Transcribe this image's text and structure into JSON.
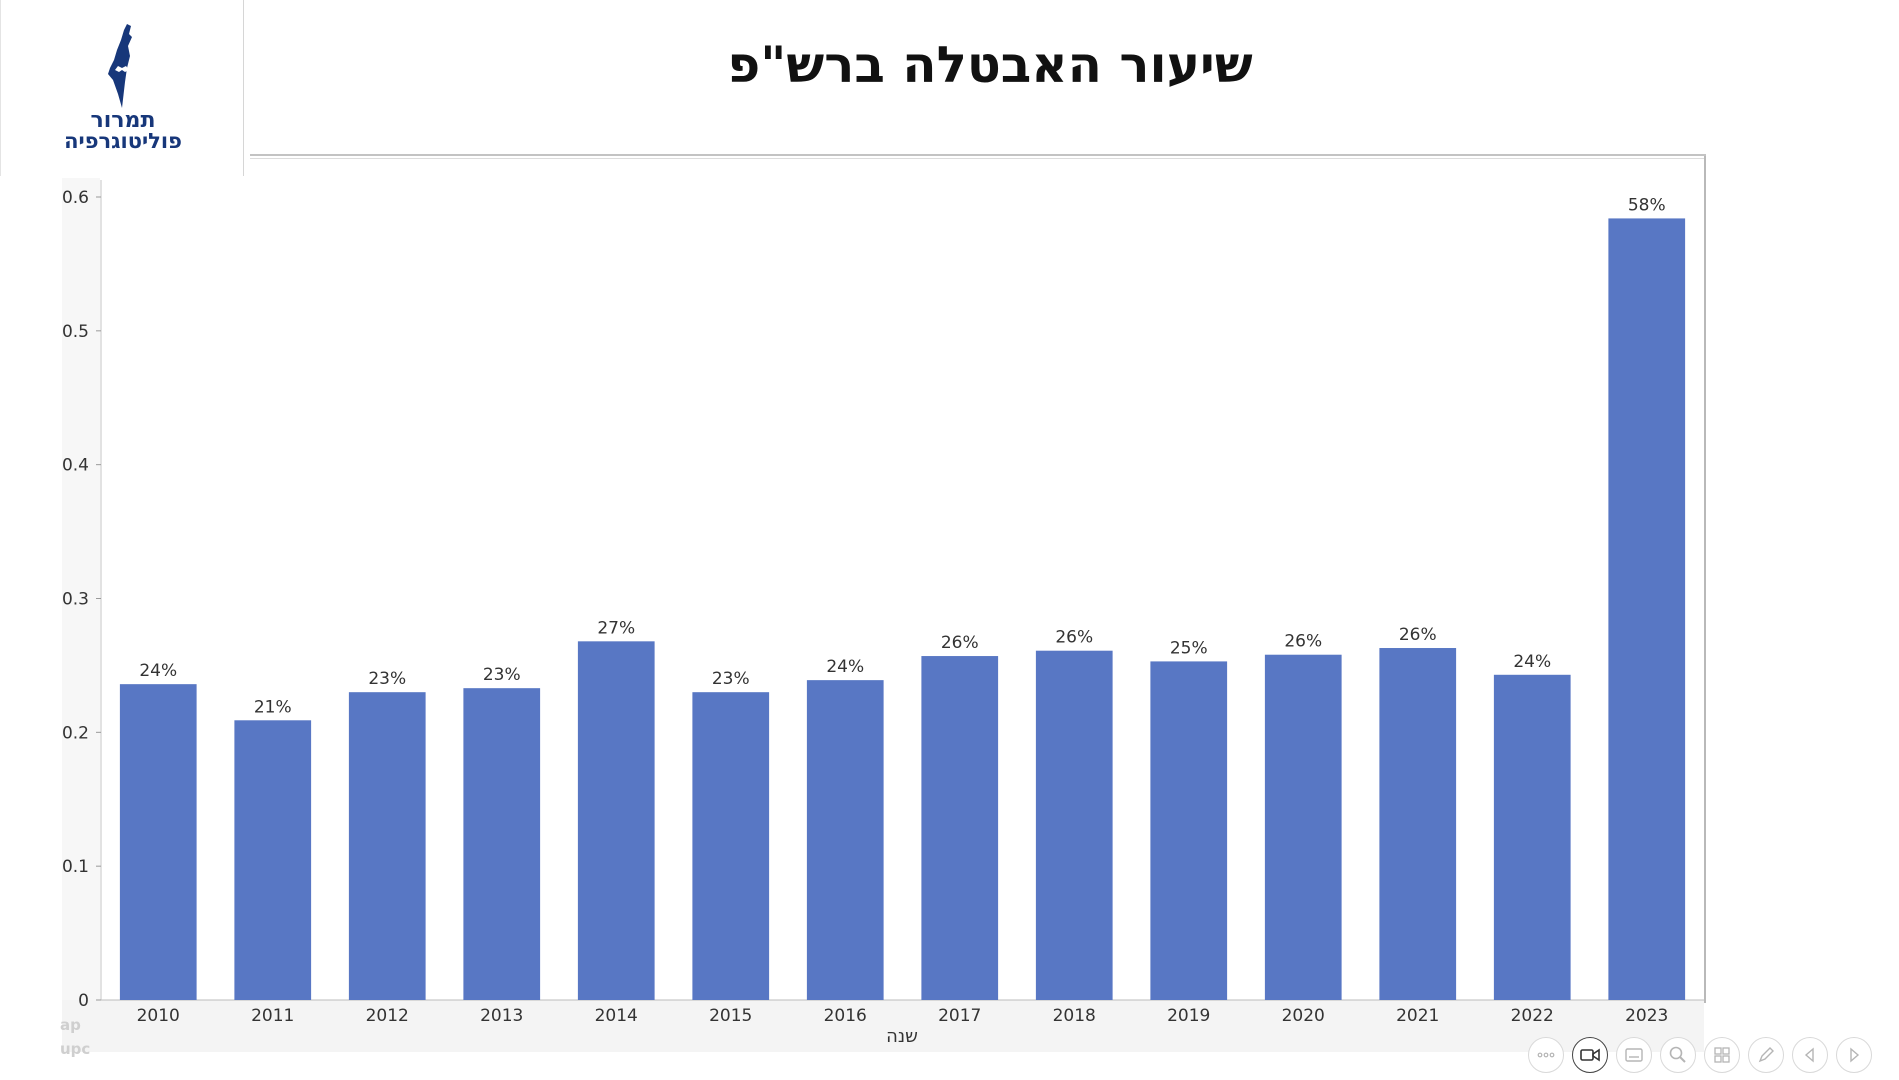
{
  "logo": {
    "line1": "תמרור",
    "line2": "פוליטוגרפיה",
    "icon": "israel-map-icon",
    "color": "#17377a"
  },
  "page": {
    "title": "שיעור האבטלה ברש\"פ"
  },
  "chart_data": {
    "type": "bar",
    "title": "",
    "xlabel": "שנה",
    "ylabel": "",
    "ylim": [
      0,
      0.62
    ],
    "yticks": [
      0,
      0.1,
      0.2,
      0.3,
      0.4,
      0.5,
      0.6
    ],
    "ytick_labels": [
      "0",
      "0.1",
      "0.2",
      "0.3",
      "0.4",
      "0.5",
      "0.6"
    ],
    "categories": [
      "2010",
      "2011",
      "2012",
      "2013",
      "2014",
      "2015",
      "2016",
      "2017",
      "2018",
      "2019",
      "2020",
      "2021",
      "2022",
      "2023"
    ],
    "values": [
      0.236,
      0.209,
      0.23,
      0.233,
      0.268,
      0.23,
      0.239,
      0.257,
      0.261,
      0.253,
      0.258,
      0.263,
      0.243,
      0.584
    ],
    "data_labels": [
      "24%",
      "21%",
      "23%",
      "23%",
      "27%",
      "23%",
      "24%",
      "26%",
      "26%",
      "25%",
      "26%",
      "26%",
      "24%",
      "58%"
    ],
    "bar_color": "#5877c4",
    "grid": false,
    "legend": "none"
  },
  "ghost_text": {
    "line1": "ap",
    "line2": "upc"
  },
  "toolbar": {
    "buttons": [
      {
        "name": "more-options-icon",
        "active": false
      },
      {
        "name": "video-camera-icon",
        "active": true
      },
      {
        "name": "subtitles-icon",
        "active": false
      },
      {
        "name": "zoom-icon",
        "active": false
      },
      {
        "name": "slide-grid-icon",
        "active": false
      },
      {
        "name": "pen-icon",
        "active": false
      },
      {
        "name": "previous-slide-icon",
        "active": false
      },
      {
        "name": "next-slide-icon",
        "active": false
      }
    ]
  }
}
